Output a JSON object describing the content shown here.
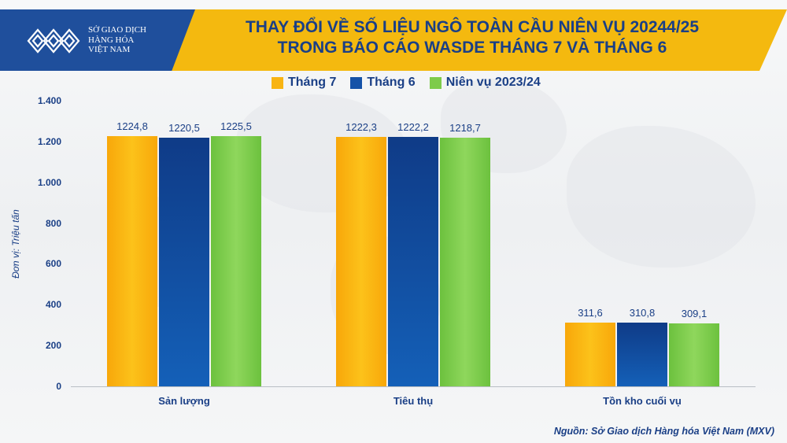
{
  "header": {
    "logo": {
      "icon": "mxv-logo-icon",
      "lines": [
        "SỞ GIAO DỊCH",
        "HÀNG HÓA",
        "VIỆT NAM"
      ]
    },
    "title_lines": [
      "THAY ĐỔI VỀ SỐ LIỆU NGÔ TOÀN CẦU NIÊN VỤ 20244/25",
      "TRONG BÁO CÁO WASDE THÁNG 7 VÀ THÁNG 6"
    ]
  },
  "legend": [
    {
      "label": "Tháng 7",
      "color": "#f8b413"
    },
    {
      "label": "Tháng 6",
      "color": "#1552a8"
    },
    {
      "label": "Niên vụ 2023/24",
      "color": "#7ecb4b"
    }
  ],
  "axis": {
    "ylabel": "Đơn vị: Triệu tấn",
    "yticks": [
      "0",
      "200",
      "400",
      "600",
      "800",
      "1.000",
      "1.200",
      "1.400"
    ]
  },
  "categories": [
    "Sản lượng",
    "Tiêu thụ",
    "Tồn kho cuối vụ"
  ],
  "value_labels": [
    [
      "1224,8",
      "1220,5",
      "1225,5"
    ],
    [
      "1222,3",
      "1222,2",
      "1218,7"
    ],
    [
      "311,6",
      "310,8",
      "309,1"
    ]
  ],
  "source": "Nguồn: Sở Giao dịch Hàng hóa Việt Nam (MXV)",
  "chart_data": {
    "type": "bar",
    "title": "THAY ĐỔI VỀ SỐ LIỆU NGÔ TOÀN CẦU NIÊN VỤ 20244/25 TRONG BÁO CÁO WASDE THÁNG 7 VÀ THÁNG 6",
    "categories": [
      "Sản lượng",
      "Tiêu thụ",
      "Tồn kho cuối vụ"
    ],
    "series": [
      {
        "name": "Tháng 7",
        "values": [
          1224.8,
          1222.3,
          311.6
        ],
        "color": "#f8b413"
      },
      {
        "name": "Tháng 6",
        "values": [
          1220.5,
          1222.2,
          310.8
        ],
        "color": "#1552a8"
      },
      {
        "name": "Niên vụ 2023/24",
        "values": [
          1225.5,
          1218.7,
          309.1
        ],
        "color": "#7ecb4b"
      }
    ],
    "xlabel": "",
    "ylabel": "Đơn vị: Triệu tấn",
    "ylim": [
      0,
      1400
    ],
    "yticks": [
      0,
      200,
      400,
      600,
      800,
      1000,
      1200,
      1400
    ],
    "grid": false,
    "legend_position": "top",
    "data_labels": true,
    "source": "Nguồn: Sở Giao dịch Hàng hóa Việt Nam (MXV)"
  }
}
